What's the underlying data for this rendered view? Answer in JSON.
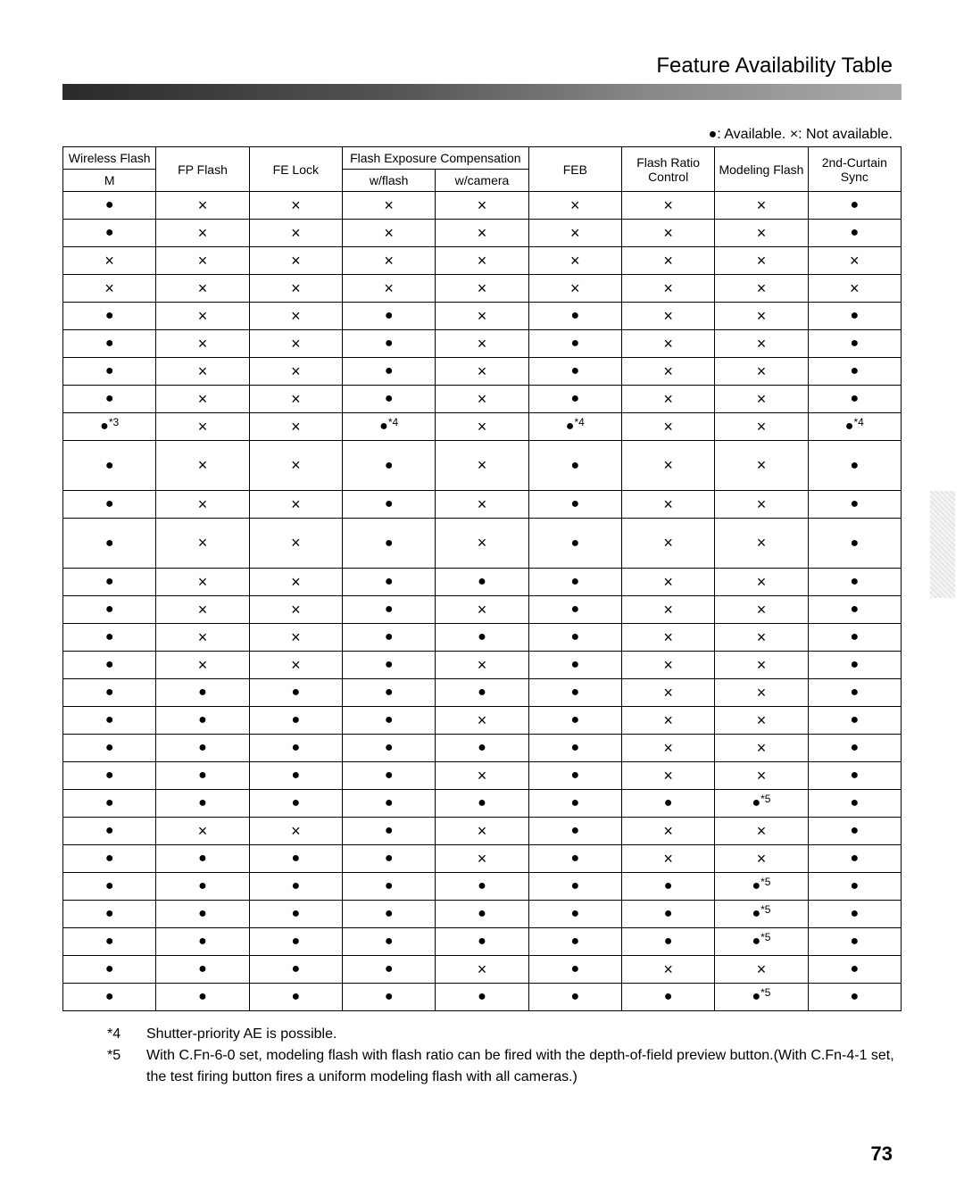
{
  "title": "Feature Availability Table",
  "legend": "●: Available.   ×: Not available.",
  "columns_top": [
    {
      "label": "Wireless Flash",
      "cls": "c1"
    },
    {
      "label": "FP Flash",
      "rowspan": 2
    },
    {
      "label": "FE Lock",
      "rowspan": 2
    },
    {
      "label": "Flash Exposure Compensation",
      "colspan": 2
    },
    {
      "label": "FEB",
      "rowspan": 2
    },
    {
      "label": "Flash Ratio Control",
      "rowspan": 2
    },
    {
      "label": "Modeling Flash",
      "rowspan": 2
    },
    {
      "label": "2nd-Curtain Sync",
      "rowspan": 2
    }
  ],
  "columns_bot": [
    {
      "label": "M"
    },
    {
      "label": "w/flash"
    },
    {
      "label": "w/camera"
    }
  ],
  "rows": [
    {
      "cells": [
        "d",
        "x",
        "x",
        "x",
        "x",
        "x",
        "x",
        "x",
        "d"
      ]
    },
    {
      "cells": [
        "d",
        "x",
        "x",
        "x",
        "x",
        "x",
        "x",
        "x",
        "d"
      ]
    },
    {
      "cells": [
        "x",
        "x",
        "x",
        "x",
        "x",
        "x",
        "x",
        "x",
        "x"
      ]
    },
    {
      "cells": [
        "x",
        "x",
        "x",
        "x",
        "x",
        "x",
        "x",
        "x",
        "x"
      ]
    },
    {
      "cells": [
        "d",
        "x",
        "x",
        "d",
        "x",
        "d",
        "x",
        "x",
        "d"
      ]
    },
    {
      "cells": [
        "d",
        "x",
        "x",
        "d",
        "x",
        "d",
        "x",
        "x",
        "d"
      ]
    },
    {
      "cells": [
        "d",
        "x",
        "x",
        "d",
        "x",
        "d",
        "x",
        "x",
        "d"
      ]
    },
    {
      "cells": [
        "d",
        "x",
        "x",
        "d",
        "x",
        "d",
        "x",
        "x",
        "d"
      ]
    },
    {
      "cells": [
        "d*3",
        "x",
        "x",
        "d*4",
        "x",
        "d*4",
        "x",
        "x",
        "d*4"
      ]
    },
    {
      "cells": [
        "d",
        "x",
        "x",
        "d",
        "x",
        "d",
        "x",
        "x",
        "d"
      ],
      "tall": true
    },
    {
      "cells": [
        "d",
        "x",
        "x",
        "d",
        "x",
        "d",
        "x",
        "x",
        "d"
      ]
    },
    {
      "cells": [
        "d",
        "x",
        "x",
        "d",
        "x",
        "d",
        "x",
        "x",
        "d"
      ],
      "tall": true
    },
    {
      "cells": [
        "d",
        "x",
        "x",
        "d",
        "d",
        "d",
        "x",
        "x",
        "d"
      ]
    },
    {
      "cells": [
        "d",
        "x",
        "x",
        "d",
        "x",
        "d",
        "x",
        "x",
        "d"
      ]
    },
    {
      "cells": [
        "d",
        "x",
        "x",
        "d",
        "d",
        "d",
        "x",
        "x",
        "d"
      ]
    },
    {
      "cells": [
        "d",
        "x",
        "x",
        "d",
        "x",
        "d",
        "x",
        "x",
        "d"
      ]
    },
    {
      "cells": [
        "d",
        "d",
        "d",
        "d",
        "d",
        "d",
        "x",
        "x",
        "d"
      ]
    },
    {
      "cells": [
        "d",
        "d",
        "d",
        "d",
        "x",
        "d",
        "x",
        "x",
        "d"
      ]
    },
    {
      "cells": [
        "d",
        "d",
        "d",
        "d",
        "d",
        "d",
        "x",
        "x",
        "d"
      ]
    },
    {
      "cells": [
        "d",
        "d",
        "d",
        "d",
        "x",
        "d",
        "x",
        "x",
        "d"
      ]
    },
    {
      "cells": [
        "d",
        "d",
        "d",
        "d",
        "d",
        "d",
        "d",
        "d*5",
        "d"
      ]
    },
    {
      "cells": [
        "d",
        "x",
        "x",
        "d",
        "x",
        "d",
        "x",
        "x",
        "d"
      ]
    },
    {
      "cells": [
        "d",
        "d",
        "d",
        "d",
        "x",
        "d",
        "x",
        "x",
        "d"
      ]
    },
    {
      "cells": [
        "d",
        "d",
        "d",
        "d",
        "d",
        "d",
        "d",
        "d*5",
        "d"
      ]
    },
    {
      "cells": [
        "d",
        "d",
        "d",
        "d",
        "d",
        "d",
        "d",
        "d*5",
        "d"
      ]
    },
    {
      "cells": [
        "d",
        "d",
        "d",
        "d",
        "d",
        "d",
        "d",
        "d*5",
        "d"
      ]
    },
    {
      "cells": [
        "d",
        "d",
        "d",
        "d",
        "x",
        "d",
        "x",
        "x",
        "d"
      ]
    },
    {
      "cells": [
        "d",
        "d",
        "d",
        "d",
        "d",
        "d",
        "d",
        "d*5",
        "d"
      ]
    }
  ],
  "footnotes": [
    {
      "label": "*4",
      "text": "Shutter-priority AE is possible."
    },
    {
      "label": "*5",
      "text": "With C.Fn-6-0 set, modeling flash with flash ratio can be fired with the depth-of-field preview button.(With C.Fn-4-1 set, the test firing button fires a uniform modeling flash with all cameras.)"
    }
  ],
  "page_number": "73"
}
